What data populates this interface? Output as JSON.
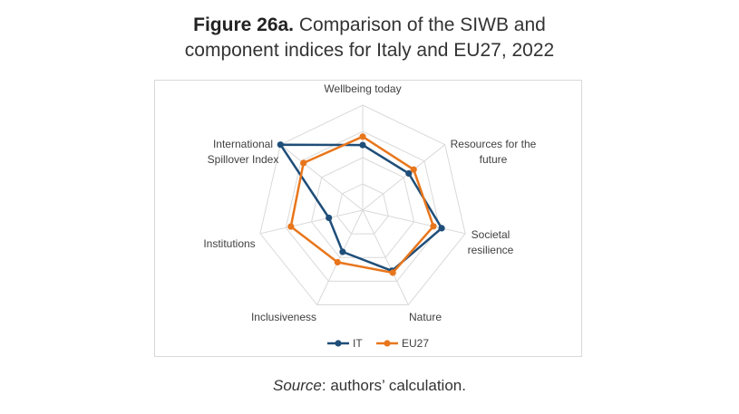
{
  "title": {
    "figure_label": "Figure 26a.",
    "line1_rest": " Comparison of the SIWB and",
    "line2": "component indices for Italy and EU27, 2022"
  },
  "source": {
    "label": "Source",
    "text": ": authors’ calculation."
  },
  "colors": {
    "IT": "#1f4e79",
    "EU27": "#e8761c",
    "grid": "#d9d9d9"
  },
  "chart_data": {
    "type": "radar",
    "axes": [
      [
        "Wellbeing today"
      ],
      [
        "Resources for the",
        "future"
      ],
      [
        "Societal",
        "resilience"
      ],
      [
        "Nature"
      ],
      [
        "Inclusiveness"
      ],
      [
        "Institutions"
      ],
      [
        "International",
        "Spillover Index"
      ]
    ],
    "rlim": [
      0,
      1
    ],
    "gridlines": true,
    "legend_position": "bottom",
    "series": [
      {
        "name": "IT",
        "values": [
          0.62,
          0.56,
          0.77,
          0.64,
          0.44,
          0.33,
          1.0
        ]
      },
      {
        "name": "EU27",
        "values": [
          0.7,
          0.62,
          0.69,
          0.66,
          0.55,
          0.7,
          0.72
        ]
      }
    ]
  }
}
